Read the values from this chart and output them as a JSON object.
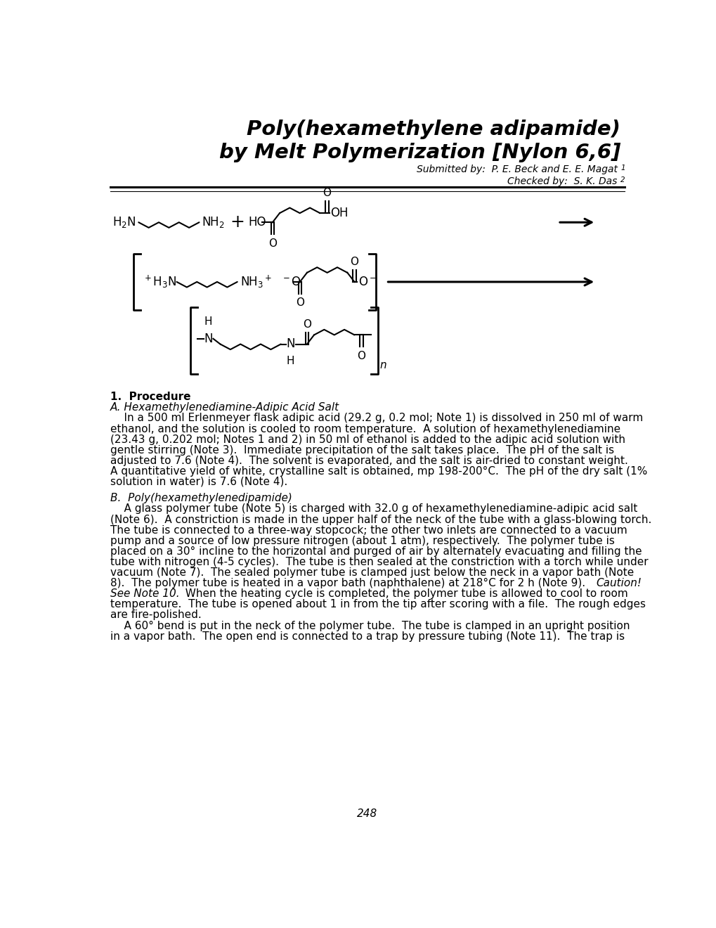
{
  "title_line1": "Poly(hexamethylene adipamide)",
  "title_line2": "by Melt Polymerization [Nylon 6,6]",
  "submitted_text": "Submitted by:  P. E. Beck and E. E. Magat ",
  "submitted_sup": "1",
  "checked_text": "Checked by:  S. K. Das ",
  "checked_sup": "2",
  "page_number": "248",
  "background_color": "#ffffff",
  "text_color": "#000000",
  "title_fontsize": 21,
  "body_fontsize": 11.0,
  "chem_lw": 1.5,
  "bracket_lw": 2.0
}
